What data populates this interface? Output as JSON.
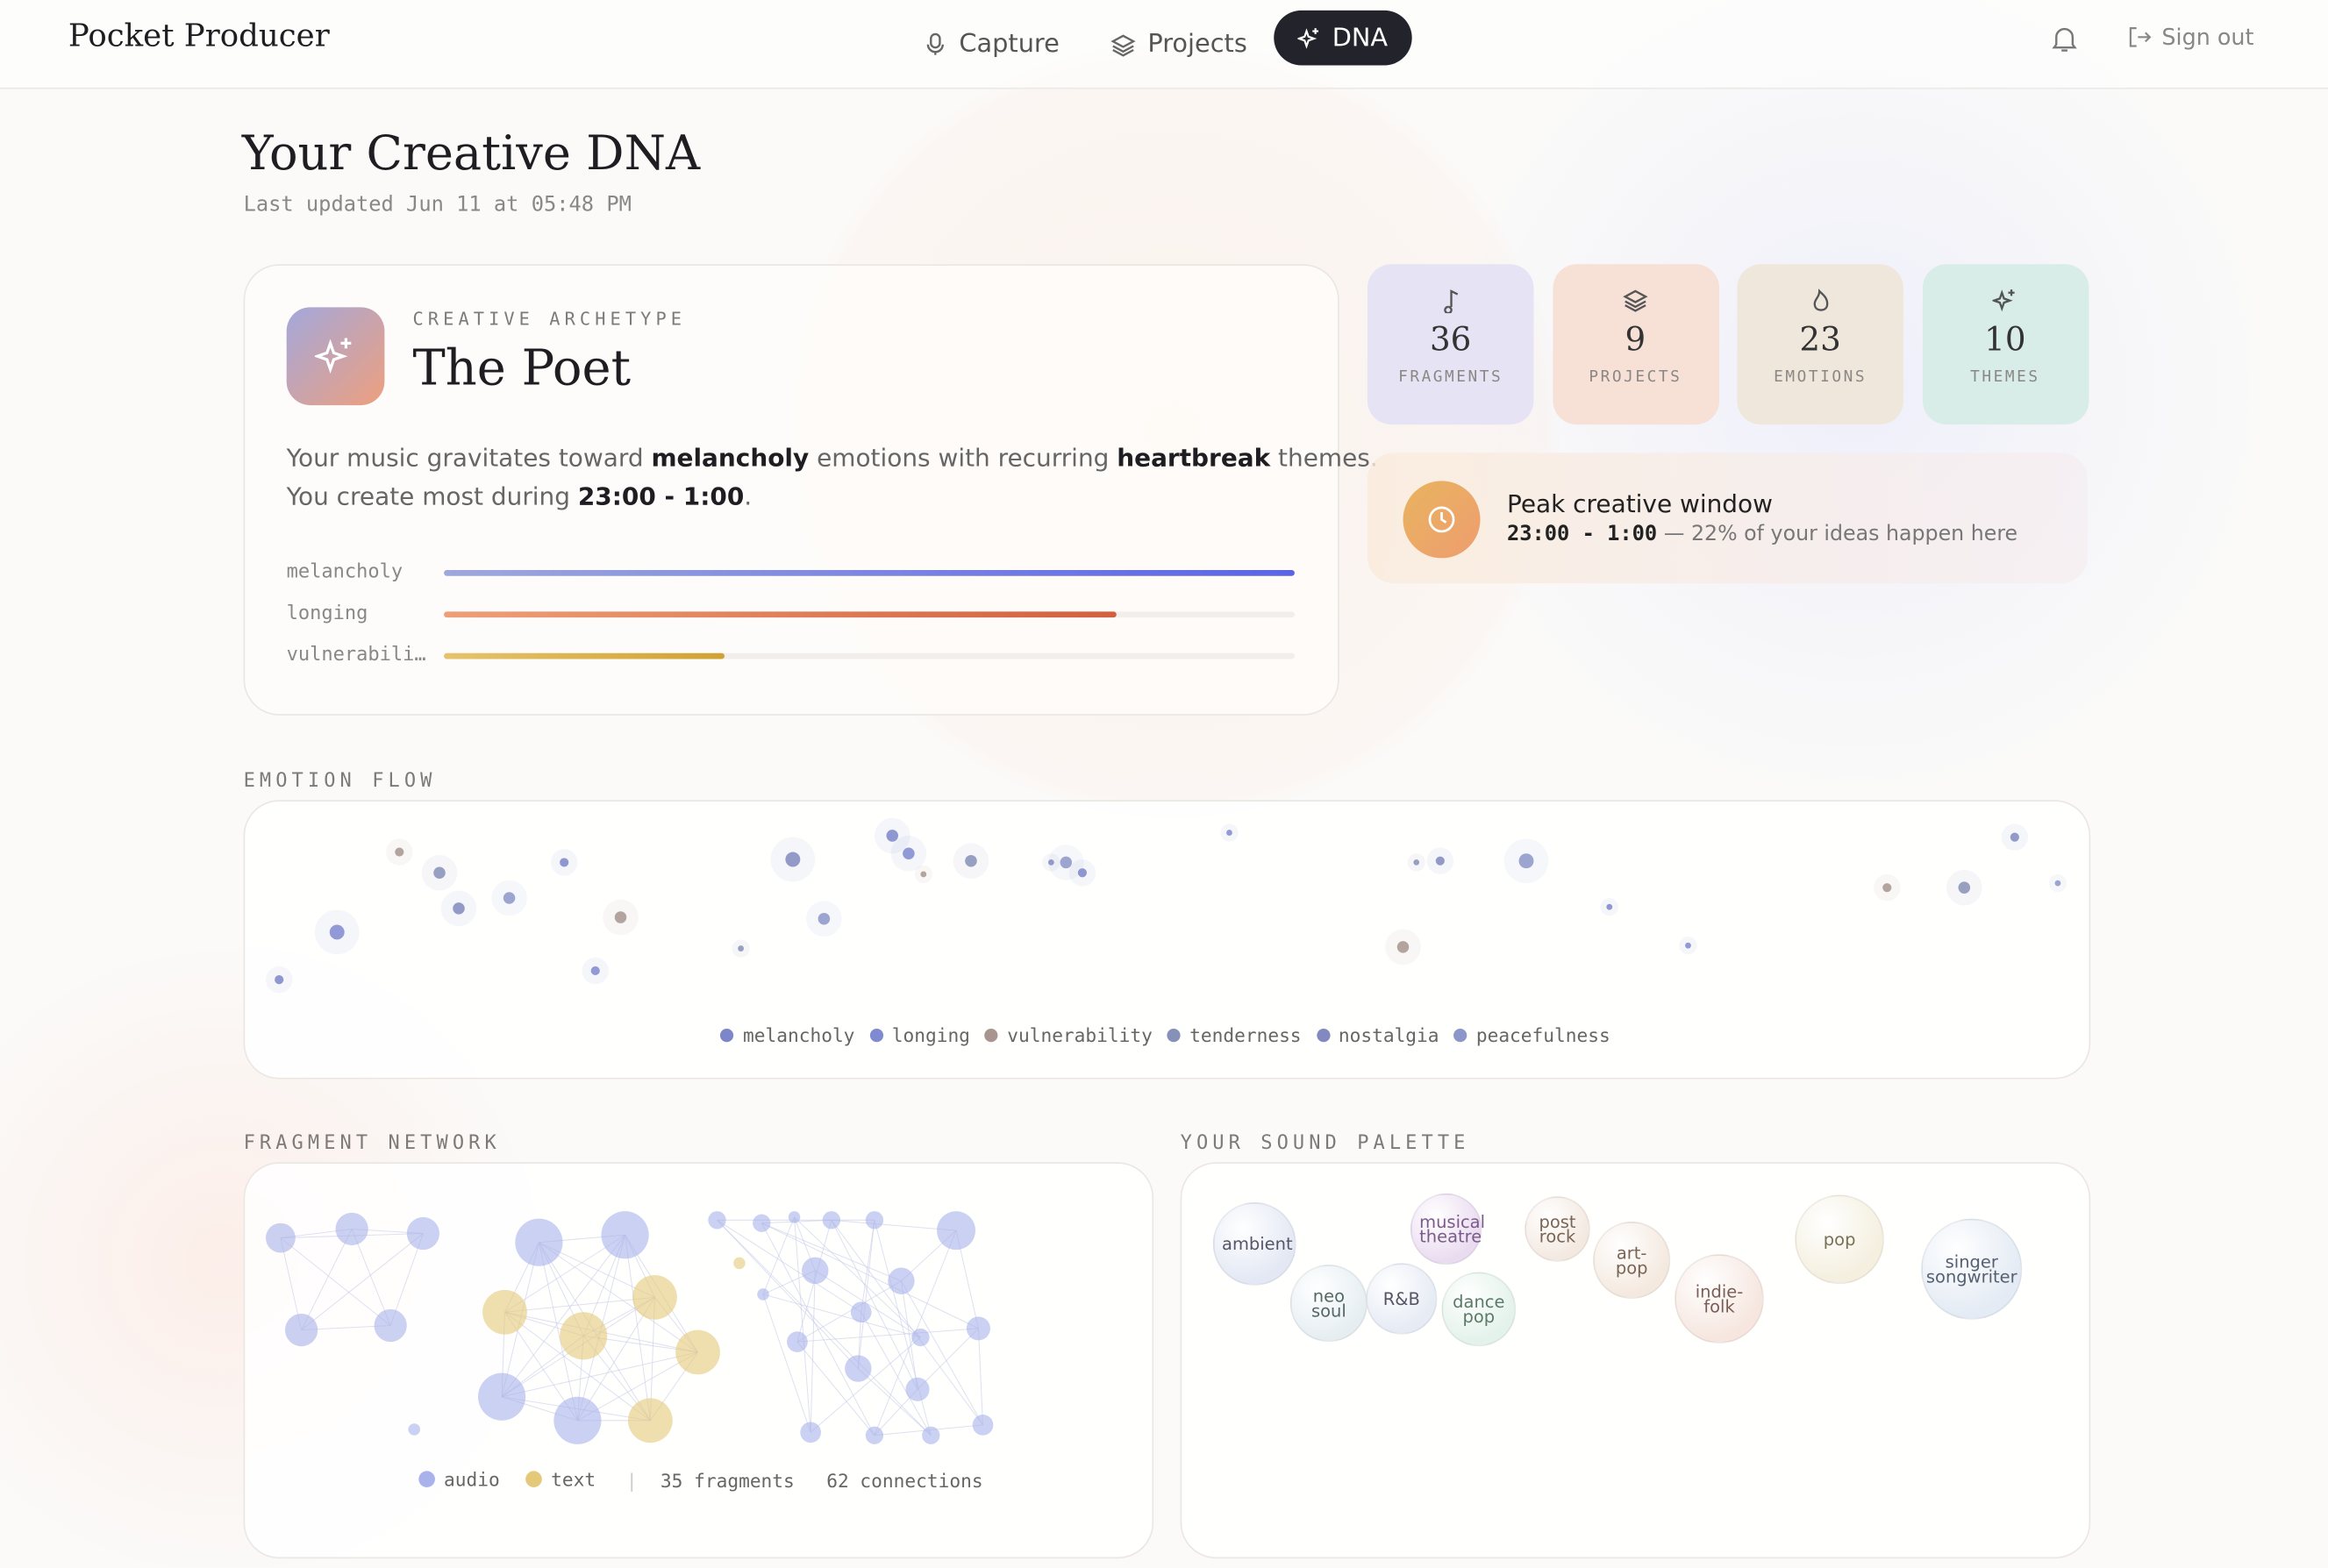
{
  "header": {
    "logo": "Pocket Producer",
    "nav": [
      "Capture",
      "Projects",
      "DNA"
    ],
    "sign_out": "Sign out"
  },
  "page": {
    "title": "Your Creative DNA",
    "updated": "Last updated Jun 11 at 05:48 PM"
  },
  "archetype": {
    "eyebrow": "CREATIVE ARCHETYPE",
    "name": "The Poet",
    "summary": [
      [
        "Your music gravitates toward ",
        "melancholy",
        " emotions with recurring ",
        "heartbreak",
        " themes."
      ],
      [
        "You create most during ",
        "23:00 - 1:00",
        "."
      ]
    ],
    "emotions": [
      {
        "label": "melancholy",
        "value": 100
      },
      {
        "label": "longing",
        "value": 79
      },
      {
        "label": "vulnerabili…",
        "value": 33
      }
    ]
  },
  "stats": [
    {
      "value": 36,
      "label": "FRAGMENTS"
    },
    {
      "value": 9,
      "label": "PROJECTS"
    },
    {
      "value": 23,
      "label": "EMOTIONS"
    },
    {
      "value": 10,
      "label": "THEMES"
    }
  ],
  "peak": {
    "title": "Peak creative window",
    "time": "23:00 - 1:00",
    "note": "— 22% of your ideas happen here"
  },
  "emotion_flow": {
    "title": "EMOTION FLOW",
    "legend": [
      "melancholy",
      "longing",
      "vulnerability",
      "tenderness",
      "nostalgia",
      "peacefulness"
    ]
  },
  "fragment_network": {
    "title": "FRAGMENT NETWORK",
    "legend": [
      "audio",
      "text"
    ],
    "fragments": "35 fragments",
    "connections": "62 connections"
  },
  "sound_palette": {
    "title": "YOUR SOUND PALETTE",
    "genres": [
      "ambient",
      "neo soul",
      "R&B",
      "musical theatre",
      "dance pop",
      "post rock",
      "art-pop",
      "indie-folk",
      "pop",
      "singer songwriter"
    ]
  }
}
